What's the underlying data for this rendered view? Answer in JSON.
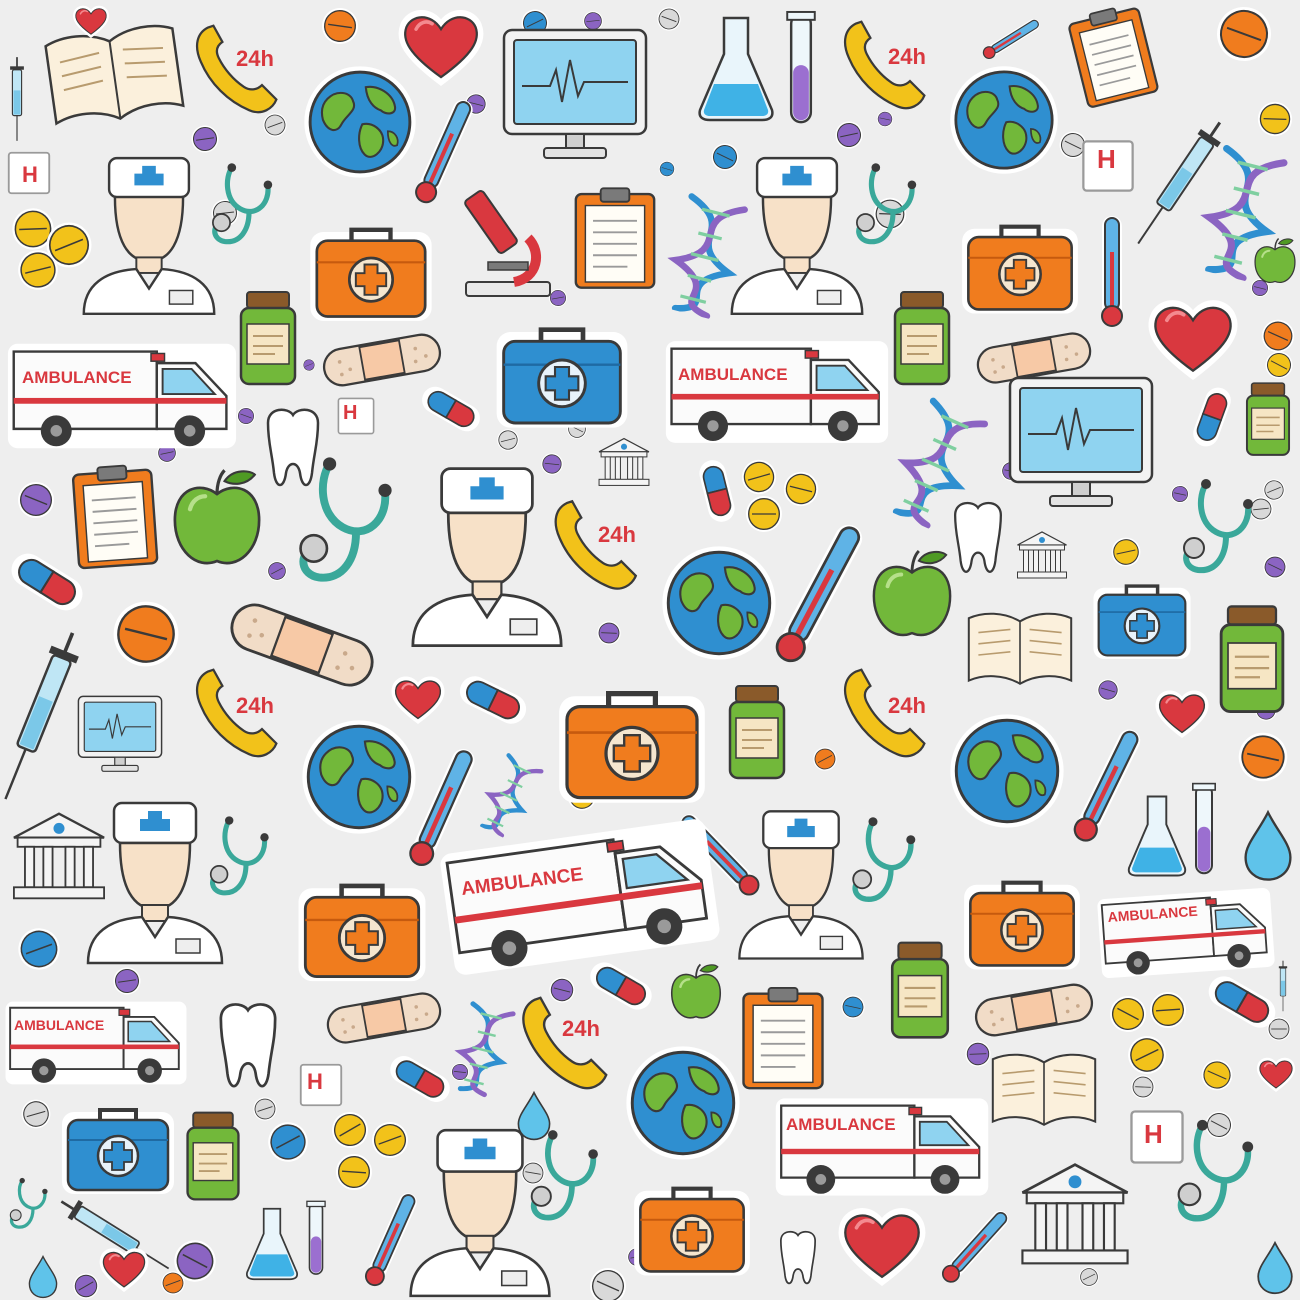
{
  "texts": {
    "ambulance": "AMBULANCE",
    "hours": "24h",
    "hospital": "H"
  },
  "colors": {
    "background": "#eeeeee",
    "outline": "#3a3a3a",
    "red": "#d9383f",
    "orange": "#f07c1e",
    "blue": "#2f8fd0",
    "green": "#72b83a",
    "teal": "#3aa89a",
    "yellow": "#f2c21a",
    "purple": "#8b64c2",
    "skin": "#f7e1c8",
    "paper": "#fbf7ee"
  },
  "icons": [
    "stethoscope-icon",
    "first-aid-kit-icon",
    "ambulance-icon",
    "globe-icon",
    "heart-icon",
    "thermometer-icon",
    "syringe-icon",
    "pill-icon",
    "capsule-icon",
    "tooth-icon",
    "dna-icon",
    "microscope-icon",
    "monitor-icon",
    "flask-icon",
    "test-tube-icon",
    "book-icon",
    "clipboard-icon",
    "bandage-icon",
    "apple-icon",
    "medicine-jar-icon",
    "hospital-sign-icon",
    "phone-icon",
    "doctor-icon",
    "bank-building-icon",
    "drop-icon"
  ]
}
